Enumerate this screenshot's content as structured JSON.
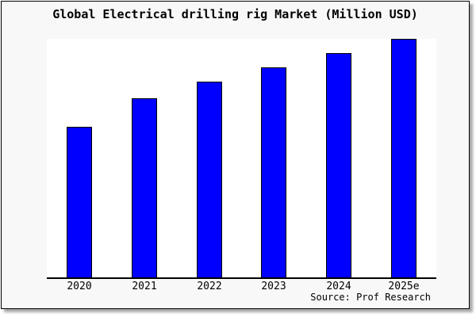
{
  "page": {
    "title": "Global Electrical drilling rig Market (Million USD)",
    "source_caption": "Source: Prof Research"
  },
  "chart_data": {
    "type": "bar",
    "title": "Global Electrical drilling rig Market (Million USD)",
    "categories": [
      "2020",
      "2021",
      "2022",
      "2023",
      "2024",
      "2025e"
    ],
    "values": [
      63,
      75,
      82,
      88,
      94,
      100
    ],
    "values_note_unit": "relative index, y-axis unlabeled; estimated from bar heights with tallest bar (2025e) = 100",
    "xlabel": "",
    "ylabel": "",
    "ylim": [
      0,
      100
    ],
    "grid": false,
    "legend": "none",
    "y_axis_labels_visible": false,
    "bar_color": "#0000ff",
    "bar_border_color": "#000000",
    "source": "Source: Prof Research"
  },
  "colors": {
    "card_background": "#f8f8f8",
    "plot_background": "#ffffff",
    "frame_border": "#000000",
    "shadow": "#a9a9a9",
    "text": "#000000"
  }
}
